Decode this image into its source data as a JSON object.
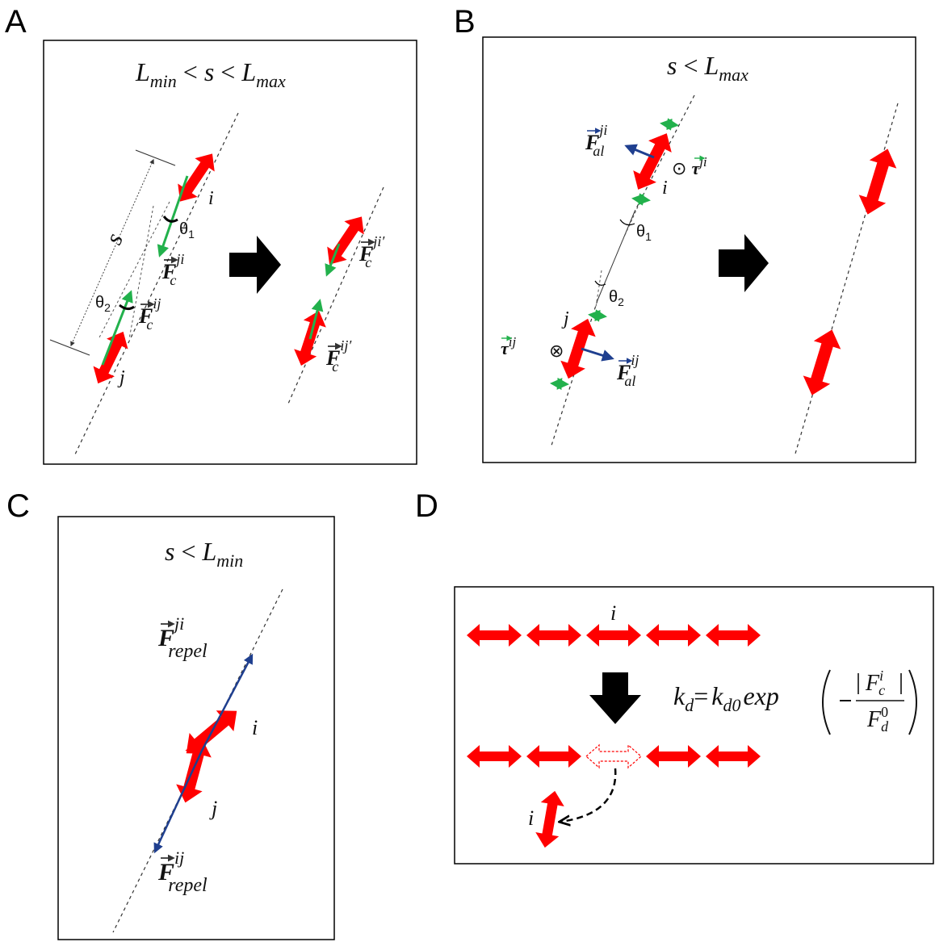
{
  "colors": {
    "filament": "#ff0000",
    "force_green": "#22b14c",
    "force_blue": "#1f3f8f",
    "arrow_black": "#000000",
    "frame": "#000000"
  },
  "panels": {
    "A": {
      "label": "A",
      "condition": {
        "L1": "L",
        "s1": "min",
        "op1": "<",
        "s": "s",
        "op2": "<",
        "L2": "L",
        "s2": "max"
      },
      "s_label": "s",
      "i_label": "i",
      "j_label": "j",
      "theta1": {
        "base": "θ",
        "sub": "1"
      },
      "theta2": {
        "base": "θ",
        "sub": "2"
      },
      "F_ji": {
        "base": "F",
        "sup": "ji",
        "sub": "c"
      },
      "F_ij": {
        "base": "F",
        "sup": "ij",
        "sub": "c"
      },
      "F_ji_prime": {
        "base": "F",
        "sup": "ji′",
        "sub": "c"
      },
      "F_ij_prime": {
        "base": "F",
        "sup": "ij′",
        "sub": "c"
      }
    },
    "B": {
      "label": "B",
      "condition": {
        "s": "s",
        "op": "<",
        "L": "L",
        "sub": "max"
      },
      "i_label": "i",
      "j_label": "j",
      "theta1": {
        "base": "θ",
        "sub": "1"
      },
      "theta2": {
        "base": "θ",
        "sub": "2"
      },
      "F_al_ji": {
        "base": "F",
        "sup": "ji",
        "sub": "al"
      },
      "F_al_ij": {
        "base": "F",
        "sup": "ij",
        "sub": "al"
      },
      "tau_ji": {
        "symbol": "⊙",
        "base": "τ",
        "sup": "ji"
      },
      "tau_ij": {
        "symbol": "⊗",
        "base": "τ",
        "sup": "ij"
      }
    },
    "C": {
      "label": "C",
      "condition": {
        "s": "s",
        "op": "<",
        "L": "L",
        "sub": "min"
      },
      "i_label": "i",
      "j_label": "j",
      "F_repel_ji": {
        "base": "F",
        "sup": "ji",
        "sub": "repel"
      },
      "F_repel_ij": {
        "base": "F",
        "sup": "ij",
        "sub": "repel"
      }
    },
    "D": {
      "label": "D",
      "i_top": "i",
      "i_bottom": "i",
      "equation": {
        "lhs": "k",
        "lhs_sub": "d",
        "eq": "=",
        "k0": "k",
        "k0_sub": "d0",
        "exp": "exp",
        "num": "F",
        "num_sup": "i",
        "num_sub": "c",
        "den": "F",
        "den_sup": "0",
        "den_sub": "d"
      }
    }
  }
}
